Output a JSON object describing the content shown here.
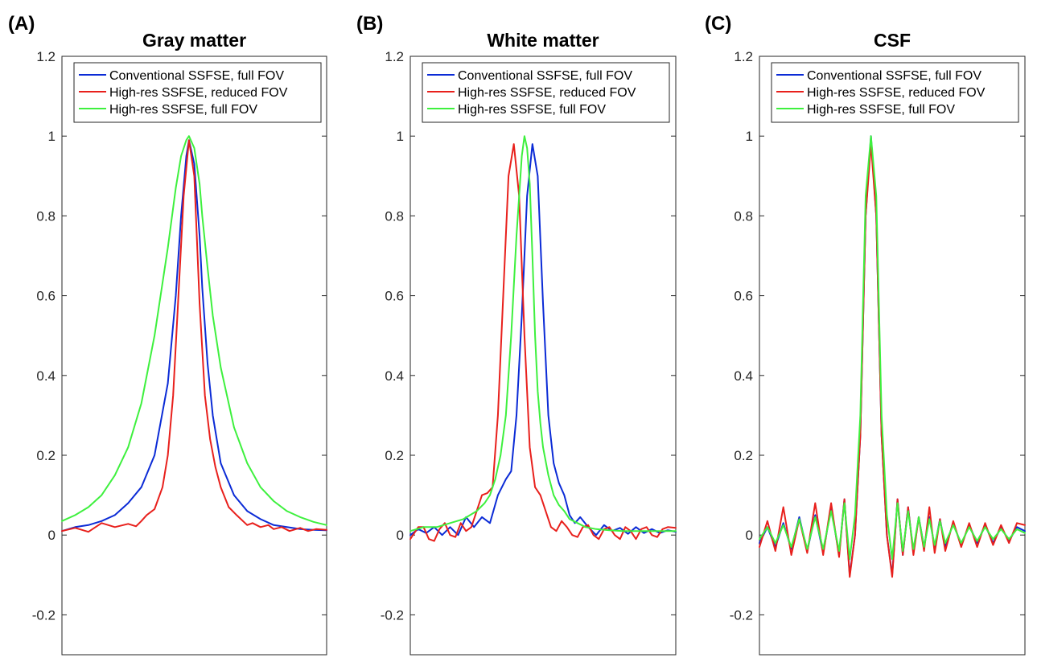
{
  "chart_data": [
    {
      "type": "line",
      "panel_label": "(A)",
      "title": "Gray matter",
      "xlabel": "",
      "ylabel": "",
      "ylim": [
        -0.3,
        1.2
      ],
      "yticks": [
        -0.2,
        0,
        0.2,
        0.4,
        0.6,
        0.8,
        1,
        1.2
      ],
      "ytick_labels": [
        "-0.2",
        "0",
        "0.2",
        "0.4",
        "0.6",
        "0.8",
        "1",
        "1.2"
      ],
      "xlim": [
        0,
        100
      ],
      "grid": false,
      "legend_position": "top",
      "series": [
        {
          "name": "Conventional SSFSE, full FOV",
          "color": "#0b2bd6",
          "x": [
            0,
            5,
            10,
            15,
            20,
            25,
            30,
            35,
            40,
            43,
            45,
            47,
            48,
            50,
            52,
            53,
            55,
            57,
            60,
            65,
            70,
            75,
            80,
            85,
            90,
            95,
            100
          ],
          "y": [
            0.01,
            0.02,
            0.025,
            0.035,
            0.05,
            0.08,
            0.12,
            0.2,
            0.38,
            0.6,
            0.8,
            0.95,
            0.99,
            0.93,
            0.75,
            0.62,
            0.43,
            0.3,
            0.18,
            0.1,
            0.06,
            0.04,
            0.025,
            0.02,
            0.015,
            0.013,
            0.012
          ]
        },
        {
          "name": "High-res SSFSE, reduced FOV",
          "color": "#e8201c",
          "x": [
            0,
            5,
            10,
            15,
            20,
            25,
            28,
            30,
            32,
            35,
            38,
            40,
            42,
            44,
            46,
            48,
            50,
            52,
            54,
            56,
            58,
            60,
            63,
            66,
            70,
            72,
            75,
            78,
            80,
            83,
            86,
            90,
            93,
            96,
            100
          ],
          "y": [
            0.01,
            0.018,
            0.008,
            0.03,
            0.02,
            0.028,
            0.022,
            0.035,
            0.05,
            0.065,
            0.12,
            0.2,
            0.35,
            0.6,
            0.85,
            0.99,
            0.9,
            0.58,
            0.35,
            0.24,
            0.17,
            0.12,
            0.07,
            0.05,
            0.025,
            0.03,
            0.02,
            0.025,
            0.015,
            0.02,
            0.01,
            0.018,
            0.01,
            0.015,
            0.013
          ]
        },
        {
          "name": "High-res SSFSE, full FOV",
          "color": "#3ef03e",
          "x": [
            0,
            5,
            10,
            15,
            20,
            25,
            30,
            35,
            40,
            43,
            45,
            47,
            48,
            50,
            52,
            53,
            55,
            57,
            60,
            65,
            70,
            75,
            80,
            85,
            90,
            95,
            100
          ],
          "y": [
            0.035,
            0.05,
            0.07,
            0.1,
            0.15,
            0.22,
            0.33,
            0.5,
            0.72,
            0.87,
            0.95,
            0.99,
            1.0,
            0.97,
            0.88,
            0.8,
            0.67,
            0.55,
            0.42,
            0.27,
            0.18,
            0.12,
            0.085,
            0.06,
            0.045,
            0.033,
            0.025
          ]
        }
      ]
    },
    {
      "type": "line",
      "panel_label": "(B)",
      "title": "White matter",
      "xlabel": "",
      "ylabel": "",
      "ylim": [
        -0.3,
        1.2
      ],
      "yticks": [
        -0.2,
        0,
        0.2,
        0.4,
        0.6,
        0.8,
        1,
        1.2
      ],
      "ytick_labels": [
        "-0.2",
        "0",
        "0.2",
        "0.4",
        "0.6",
        "0.8",
        "1",
        "1.2"
      ],
      "xlim": [
        0,
        100
      ],
      "grid": false,
      "legend_position": "top",
      "series": [
        {
          "name": "Conventional SSFSE, full FOV",
          "color": "#0b2bd6",
          "x": [
            0,
            3,
            6,
            9,
            12,
            15,
            18,
            21,
            24,
            27,
            30,
            33,
            36,
            38,
            40,
            42,
            44,
            46,
            48,
            50,
            52,
            54,
            56,
            58,
            60,
            62,
            64,
            67,
            70,
            73,
            76,
            79,
            82,
            85,
            88,
            91,
            94,
            97,
            100
          ],
          "y": [
            0.0,
            0.015,
            0.005,
            0.02,
            0.0,
            0.02,
            0.0,
            0.045,
            0.02,
            0.045,
            0.03,
            0.1,
            0.14,
            0.16,
            0.3,
            0.55,
            0.85,
            0.98,
            0.9,
            0.58,
            0.3,
            0.18,
            0.13,
            0.1,
            0.05,
            0.03,
            0.045,
            0.02,
            0.0,
            0.025,
            0.01,
            0.018,
            0.003,
            0.02,
            0.005,
            0.015,
            0.005,
            0.012,
            0.008
          ]
        },
        {
          "name": "High-res SSFSE, reduced FOV",
          "color": "#e8201c",
          "x": [
            0,
            3,
            5,
            7,
            9,
            11,
            13,
            15,
            17,
            19,
            21,
            23,
            25,
            27,
            29,
            31,
            33,
            35,
            37,
            39,
            41,
            43,
            45,
            47,
            49,
            51,
            53,
            55,
            57,
            59,
            61,
            63,
            65,
            67,
            69,
            71,
            73,
            75,
            77,
            79,
            81,
            83,
            85,
            87,
            89,
            91,
            93,
            95,
            97,
            100
          ],
          "y": [
            -0.01,
            0.02,
            0.02,
            -0.01,
            -0.015,
            0.015,
            0.03,
            0.0,
            -0.005,
            0.03,
            0.01,
            0.02,
            0.06,
            0.1,
            0.105,
            0.12,
            0.3,
            0.6,
            0.9,
            0.98,
            0.85,
            0.5,
            0.22,
            0.12,
            0.1,
            0.06,
            0.02,
            0.01,
            0.035,
            0.02,
            0.0,
            -0.005,
            0.02,
            0.025,
            0.0,
            -0.01,
            0.015,
            0.02,
            0.0,
            -0.01,
            0.02,
            0.01,
            -0.01,
            0.015,
            0.02,
            0.0,
            -0.005,
            0.015,
            0.02,
            0.018
          ]
        },
        {
          "name": "High-res SSFSE, full FOV",
          "color": "#3ef03e",
          "x": [
            0,
            5,
            10,
            15,
            20,
            25,
            28,
            30,
            32,
            34,
            36,
            38,
            40,
            42,
            43,
            44,
            45,
            46,
            47,
            48,
            49,
            50,
            52,
            54,
            56,
            58,
            60,
            63,
            66,
            70,
            75,
            80,
            85,
            90,
            95,
            100
          ],
          "y": [
            0.01,
            0.02,
            0.02,
            0.03,
            0.04,
            0.06,
            0.08,
            0.1,
            0.14,
            0.2,
            0.3,
            0.5,
            0.75,
            0.95,
            1.0,
            0.97,
            0.88,
            0.7,
            0.5,
            0.36,
            0.28,
            0.22,
            0.15,
            0.1,
            0.075,
            0.06,
            0.04,
            0.03,
            0.02,
            0.015,
            0.012,
            0.01,
            0.01,
            0.01,
            0.01,
            0.01
          ]
        }
      ]
    },
    {
      "type": "line",
      "panel_label": "(C)",
      "title": "CSF",
      "xlabel": "",
      "ylabel": "",
      "ylim": [
        -0.3,
        1.2
      ],
      "yticks": [
        -0.2,
        0,
        0.2,
        0.4,
        0.6,
        0.8,
        1,
        1.2
      ],
      "ytick_labels": [
        "-0.2",
        "0",
        "0.2",
        "0.4",
        "0.6",
        "0.8",
        "1",
        "1.2"
      ],
      "xlim": [
        0,
        100
      ],
      "grid": false,
      "legend_position": "top",
      "series": [
        {
          "name": "Conventional SSFSE, full FOV",
          "color": "#0b2bd6",
          "x": [
            0,
            3,
            6,
            9,
            12,
            15,
            18,
            21,
            24,
            27,
            30,
            32,
            34,
            36,
            38,
            40,
            42,
            44,
            46,
            48,
            50,
            52,
            54,
            56,
            58,
            60,
            62,
            64,
            66,
            68,
            70,
            73,
            76,
            79,
            82,
            85,
            88,
            91,
            94,
            97,
            100
          ],
          "y": [
            -0.02,
            0.02,
            -0.03,
            0.03,
            -0.035,
            0.045,
            -0.04,
            0.05,
            -0.045,
            0.07,
            -0.05,
            0.09,
            -0.1,
            0.0,
            0.25,
            0.8,
            1.0,
            0.8,
            0.25,
            0.0,
            -0.1,
            0.09,
            -0.05,
            0.07,
            -0.045,
            0.045,
            -0.03,
            0.045,
            -0.03,
            0.04,
            -0.03,
            0.03,
            -0.025,
            0.025,
            -0.02,
            0.025,
            -0.02,
            0.02,
            -0.015,
            0.02,
            0.01
          ]
        },
        {
          "name": "High-res SSFSE, reduced FOV",
          "color": "#e8201c",
          "x": [
            0,
            3,
            6,
            9,
            12,
            15,
            18,
            21,
            24,
            27,
            30,
            32,
            34,
            36,
            38,
            40,
            42,
            44,
            46,
            48,
            50,
            52,
            54,
            56,
            58,
            60,
            62,
            64,
            66,
            68,
            70,
            73,
            76,
            79,
            82,
            85,
            88,
            91,
            94,
            97,
            100
          ],
          "y": [
            -0.03,
            0.035,
            -0.04,
            0.07,
            -0.05,
            0.04,
            -0.045,
            0.08,
            -0.05,
            0.08,
            -0.055,
            0.09,
            -0.105,
            0.0,
            0.25,
            0.8,
            0.98,
            0.8,
            0.25,
            0.0,
            -0.105,
            0.09,
            -0.05,
            0.07,
            -0.05,
            0.045,
            -0.04,
            0.07,
            -0.045,
            0.04,
            -0.04,
            0.035,
            -0.03,
            0.03,
            -0.03,
            0.03,
            -0.025,
            0.025,
            -0.02,
            0.03,
            0.025
          ]
        },
        {
          "name": "High-res SSFSE, full FOV",
          "color": "#3ef03e",
          "x": [
            0,
            3,
            6,
            9,
            12,
            15,
            18,
            21,
            24,
            27,
            30,
            32,
            34,
            36,
            38,
            40,
            42,
            44,
            46,
            48,
            50,
            52,
            54,
            56,
            58,
            60,
            62,
            64,
            66,
            68,
            70,
            73,
            76,
            79,
            82,
            85,
            88,
            91,
            94,
            97,
            100
          ],
          "y": [
            -0.01,
            0.02,
            -0.02,
            0.025,
            -0.03,
            0.04,
            -0.035,
            0.045,
            -0.035,
            0.06,
            -0.04,
            0.08,
            -0.06,
            0.05,
            0.3,
            0.85,
            1.0,
            0.85,
            0.3,
            0.05,
            -0.06,
            0.08,
            -0.04,
            0.06,
            -0.035,
            0.045,
            -0.03,
            0.04,
            -0.025,
            0.035,
            -0.02,
            0.025,
            -0.02,
            0.02,
            -0.015,
            0.02,
            -0.01,
            0.015,
            -0.01,
            0.015,
            0.005
          ]
        }
      ]
    }
  ]
}
